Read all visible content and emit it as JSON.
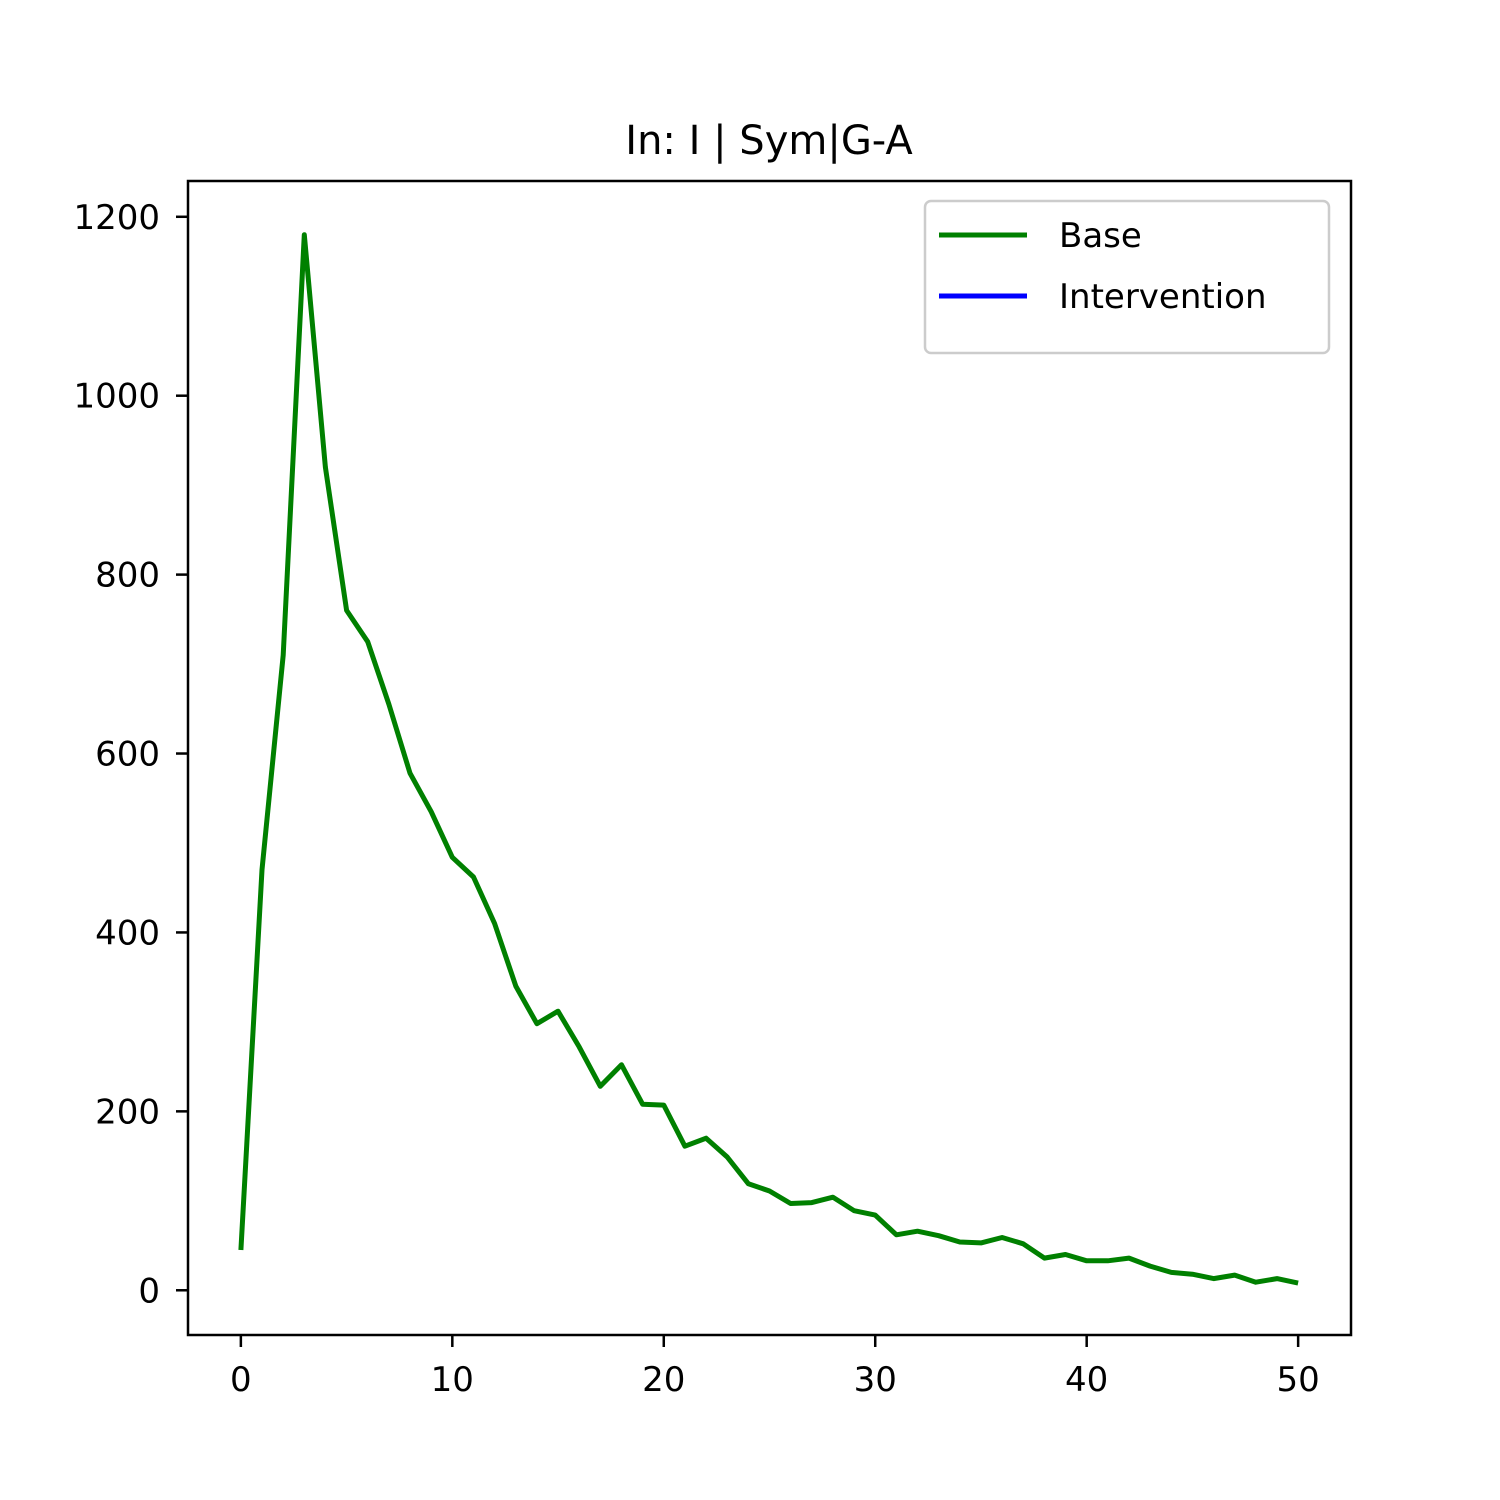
{
  "chart_data": {
    "type": "line",
    "title": "In: I | Sym|G-A",
    "xlabel": "",
    "ylabel": "",
    "xlim": [
      -2.5,
      52.5
    ],
    "ylim": [
      -50,
      1240
    ],
    "xticks": [
      0,
      10,
      20,
      30,
      40,
      50
    ],
    "yticks": [
      0,
      200,
      400,
      600,
      800,
      1000,
      1200
    ],
    "grid": false,
    "legend_position": "top-right",
    "series": [
      {
        "name": "Base",
        "color": "#008000",
        "x": [
          0,
          1,
          2,
          3,
          4,
          5,
          6,
          7,
          8,
          9,
          10,
          11,
          12,
          13,
          14,
          15,
          16,
          17,
          18,
          19,
          20,
          21,
          22,
          23,
          24,
          25,
          26,
          27,
          28,
          29,
          30,
          31,
          32,
          33,
          34,
          35,
          36,
          37,
          38,
          39,
          40,
          41,
          42,
          43,
          44,
          45,
          46,
          47,
          48,
          49,
          50
        ],
        "y": [
          45,
          470,
          710,
          1180,
          920,
          760,
          725,
          655,
          578,
          535,
          484,
          462,
          410,
          340,
          298,
          312,
          272,
          228,
          252,
          208,
          207,
          161,
          170,
          149,
          119,
          111,
          97,
          98,
          104,
          89,
          84,
          62,
          66,
          61,
          54,
          53,
          59,
          52,
          36,
          40,
          33,
          33,
          36,
          27,
          20,
          18,
          13,
          17,
          9,
          13,
          8
        ]
      },
      {
        "name": "Intervention",
        "color": "#0000ff",
        "x": [],
        "y": []
      }
    ]
  }
}
